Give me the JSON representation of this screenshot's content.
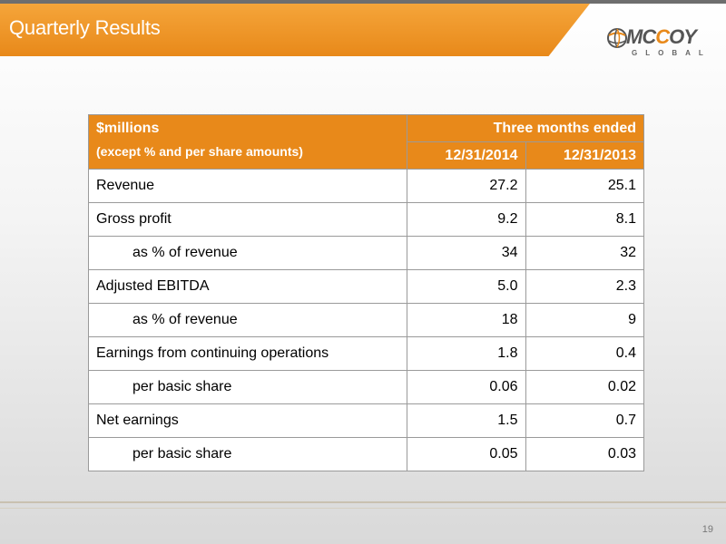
{
  "slide": {
    "title": "Quarterly Results",
    "page_number": "19",
    "logo": {
      "name_left": "MC",
      "name_accent": "C",
      "name_right": "OY",
      "subtitle": "GLOBAL"
    }
  },
  "table": {
    "header_line1": "$millions",
    "header_line2": "(except  % and per share amounts)",
    "group_header": "Three months ended",
    "columns": [
      "12/31/2014",
      "12/31/2013"
    ],
    "rows": [
      {
        "label": "Revenue",
        "values": [
          "27.2",
          "25.1"
        ]
      },
      {
        "label": "Gross profit",
        "values": [
          "9.2",
          "8.1"
        ]
      },
      {
        "label": "as % of revenue",
        "values": [
          "34",
          "32"
        ]
      },
      {
        "label": "Adjusted EBITDA",
        "values": [
          "5.0",
          "2.3"
        ]
      },
      {
        "label": "as % of revenue",
        "values": [
          "18",
          "9"
        ]
      },
      {
        "label": "Earnings from continuing operations",
        "values": [
          "1.8",
          "0.4"
        ]
      },
      {
        "label": "per basic share",
        "values": [
          "0.06",
          "0.02"
        ]
      },
      {
        "label": "Net earnings",
        "values": [
          "1.5",
          "0.7"
        ]
      },
      {
        "label": "per basic share",
        "values": [
          "0.05",
          "0.03"
        ]
      }
    ]
  },
  "colors": {
    "accent": "#e8891a",
    "title_text": "#ffffff",
    "border": "#9a9a9a"
  }
}
